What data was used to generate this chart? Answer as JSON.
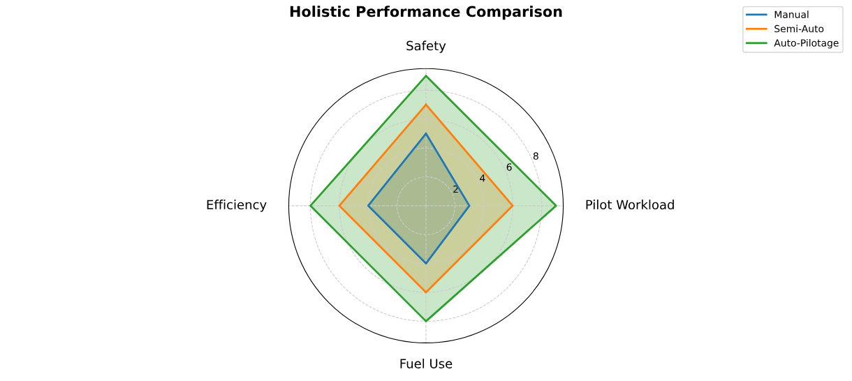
{
  "chart_data": {
    "type": "radar",
    "title": "Holistic Performance Comparison",
    "categories": [
      "Safety",
      "Pilot Workload",
      "Fuel Use",
      "Efficiency"
    ],
    "series": [
      {
        "name": "Manual",
        "color": "#1f77b4",
        "values": [
          5,
          3,
          4,
          4
        ]
      },
      {
        "name": "Semi-Auto",
        "color": "#ff7f0e",
        "values": [
          7,
          6,
          6,
          6
        ]
      },
      {
        "name": "Auto-Pilotage",
        "color": "#2ca02c",
        "values": [
          9,
          9,
          8,
          8
        ]
      }
    ],
    "ylim": [
      0,
      9.5
    ],
    "yticks": [
      2,
      4,
      6,
      8
    ],
    "grid": true,
    "legend": "top right",
    "line_style": "solid",
    "marker": "none"
  }
}
